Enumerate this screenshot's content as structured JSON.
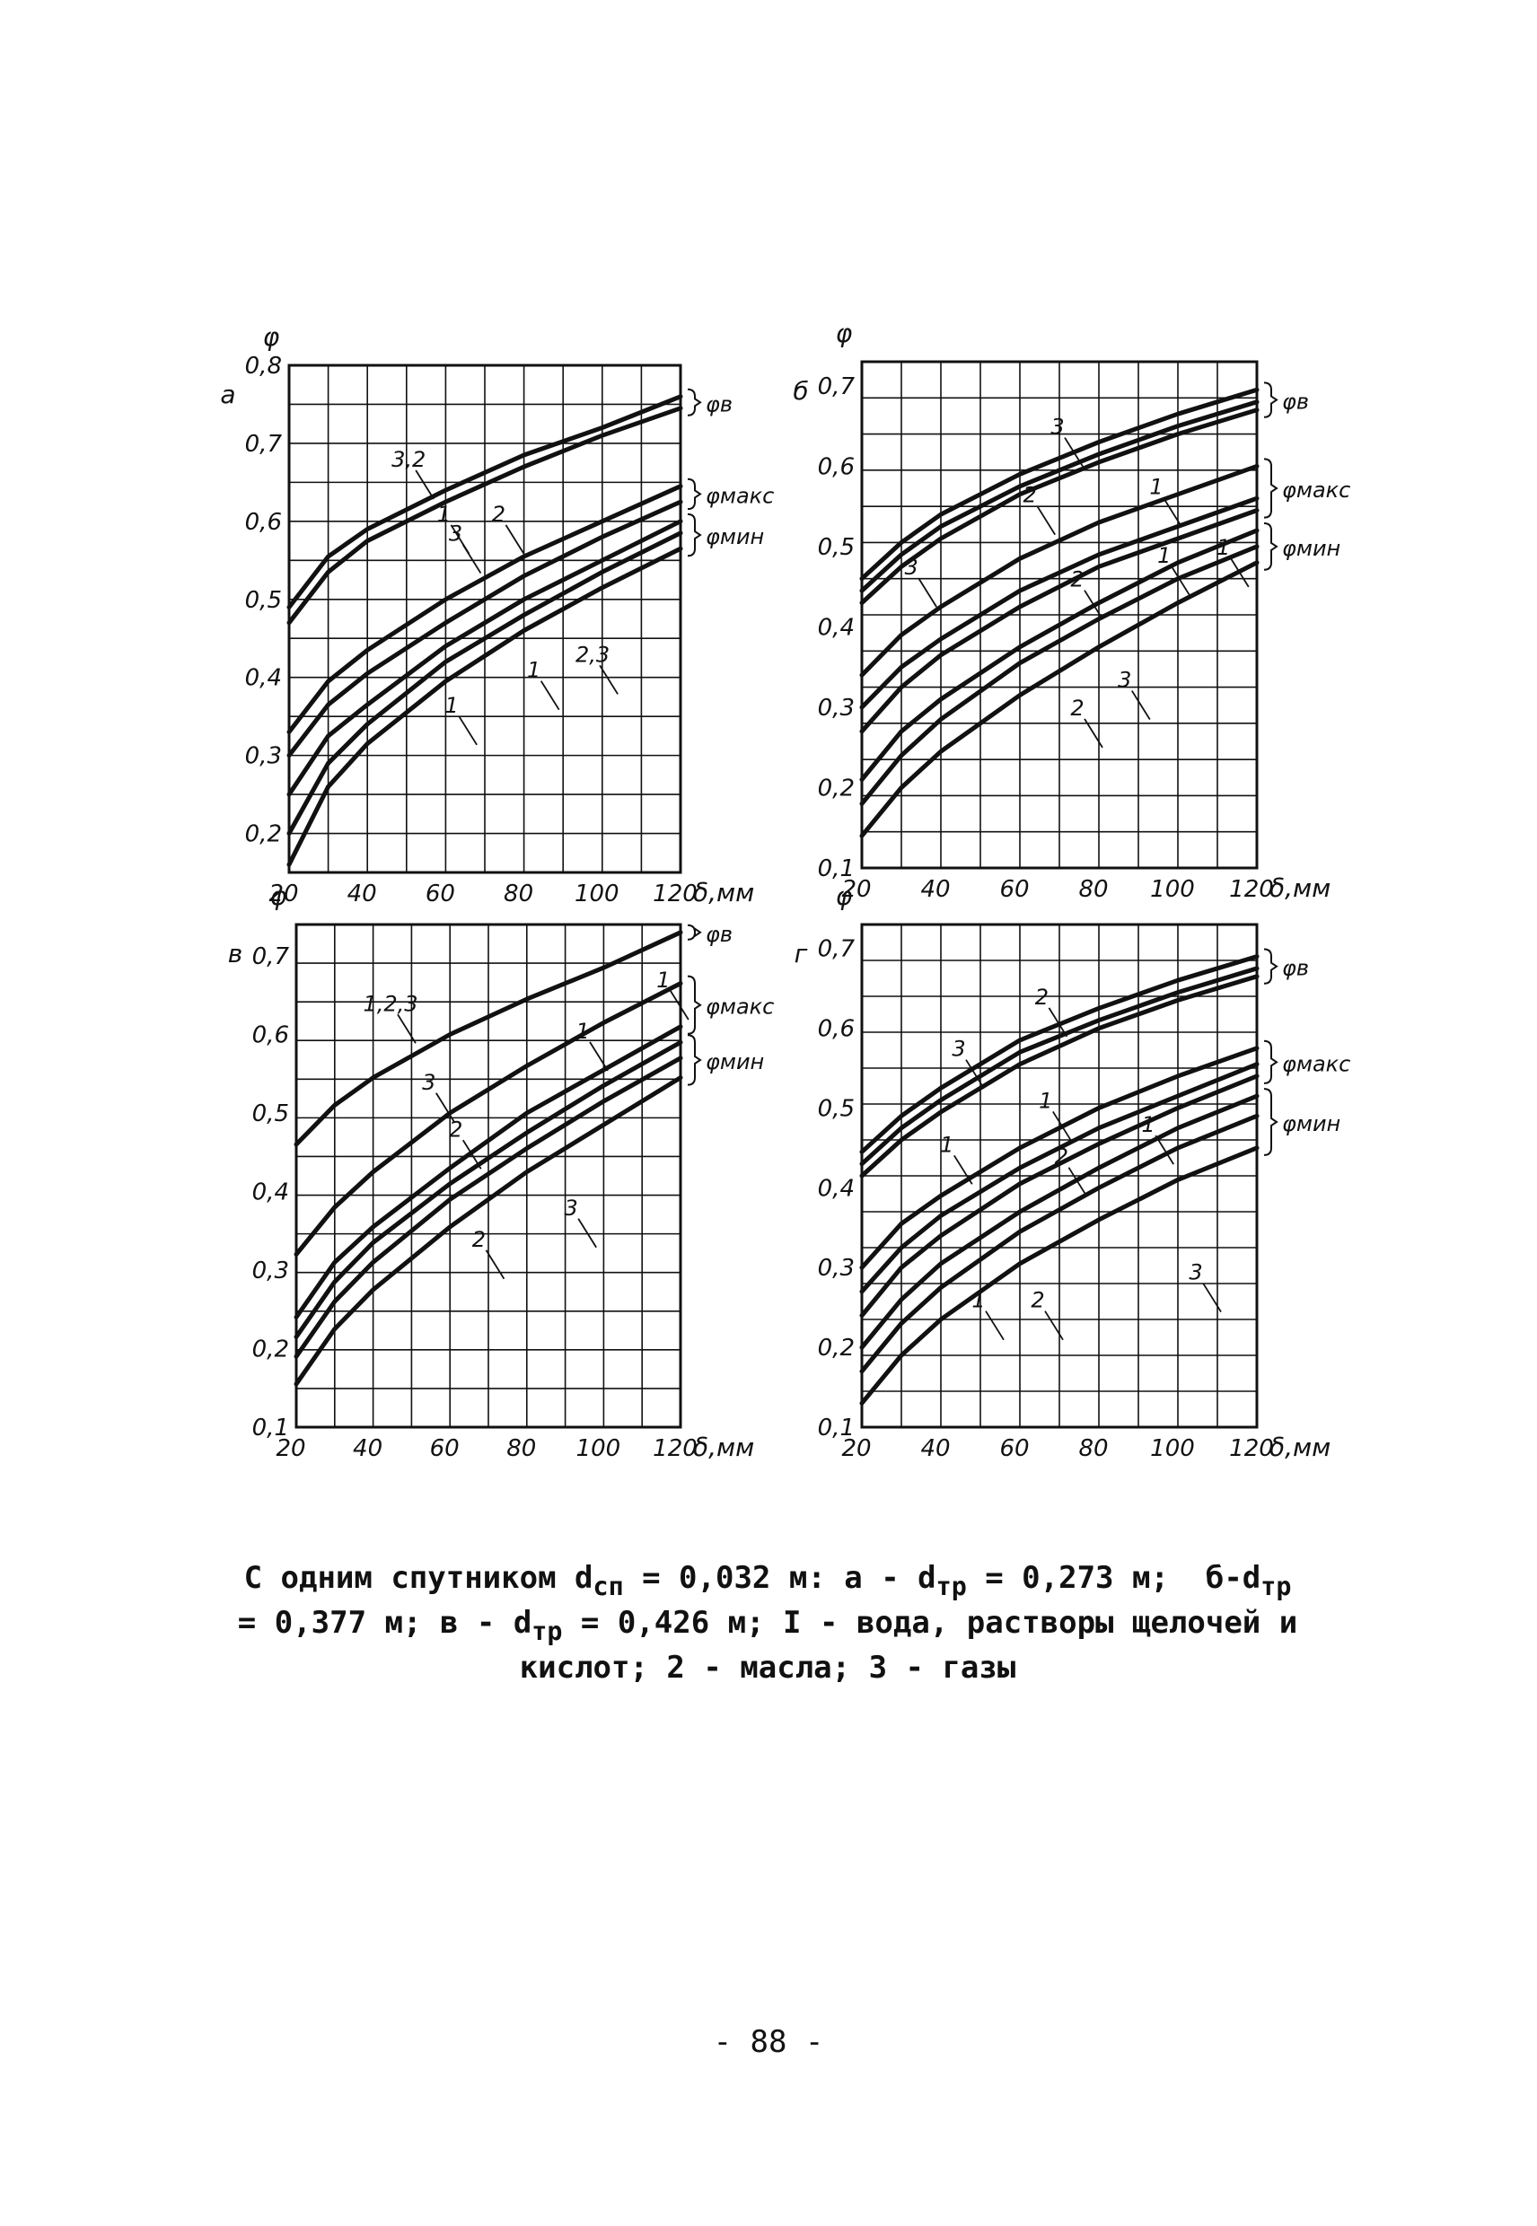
{
  "chart_data": [
    {
      "panel": "а",
      "type": "line",
      "ylabel": "φ",
      "xlabel": "δ,мм",
      "xlim": [
        20,
        120
      ],
      "ylim": [
        0.15,
        0.8
      ],
      "x_ticks": [
        "20",
        "40",
        "60",
        "80",
        "100",
        "120"
      ],
      "y_ticks": [
        "0,2",
        "0,3",
        "0,4",
        "0,5",
        "0,6",
        "0,7",
        "0,8"
      ],
      "grid": true,
      "groups": [
        {
          "label": "φв",
          "series": [
            {
              "x": [
                20,
                30,
                40,
                60,
                80,
                100,
                120
              ],
              "values": [
                0.49,
                0.555,
                0.59,
                0.64,
                0.685,
                0.72,
                0.76
              ]
            },
            {
              "x": [
                20,
                30,
                40,
                60,
                80,
                100,
                120
              ],
              "values": [
                0.47,
                0.535,
                0.575,
                0.625,
                0.67,
                0.71,
                0.745
              ]
            }
          ]
        },
        {
          "label": "φмакс",
          "series": [
            {
              "x": [
                20,
                30,
                40,
                60,
                80,
                100,
                120
              ],
              "values": [
                0.33,
                0.395,
                0.435,
                0.5,
                0.555,
                0.6,
                0.645
              ]
            },
            {
              "x": [
                20,
                30,
                40,
                60,
                80,
                100,
                120
              ],
              "values": [
                0.3,
                0.365,
                0.405,
                0.47,
                0.53,
                0.58,
                0.625
              ]
            }
          ]
        },
        {
          "label": "φмин",
          "series": [
            {
              "x": [
                20,
                30,
                40,
                60,
                80,
                100,
                120
              ],
              "values": [
                0.25,
                0.325,
                0.365,
                0.44,
                0.5,
                0.55,
                0.6
              ]
            },
            {
              "x": [
                20,
                30,
                40,
                60,
                80,
                100,
                120
              ],
              "values": [
                0.2,
                0.29,
                0.34,
                0.42,
                0.48,
                0.535,
                0.585
              ]
            },
            {
              "x": [
                20,
                30,
                40,
                60,
                80,
                100,
                120
              ],
              "values": [
                0.16,
                0.26,
                0.315,
                0.395,
                0.46,
                0.515,
                0.565
              ]
            }
          ]
        }
      ],
      "curve_labels": [
        {
          "text": "3,2",
          "x": 51,
          "y": 0.67
        },
        {
          "text": "1",
          "x": 60,
          "y": 0.6
        },
        {
          "text": "2",
          "x": 74,
          "y": 0.6
        },
        {
          "text": "3",
          "x": 63,
          "y": 0.575
        },
        {
          "text": "2,3",
          "x": 98,
          "y": 0.42
        },
        {
          "text": "1",
          "x": 83,
          "y": 0.4
        },
        {
          "text": "1",
          "x": 62,
          "y": 0.355
        }
      ]
    },
    {
      "panel": "б",
      "type": "line",
      "ylabel": "φ",
      "xlabel": "δ,мм",
      "xlim": [
        20,
        120
      ],
      "ylim": [
        0.1,
        0.73
      ],
      "x_ticks": [
        "20",
        "40",
        "60",
        "80",
        "100",
        "120"
      ],
      "y_ticks": [
        "0,1",
        "0,2",
        "0,3",
        "0,4",
        "0,5",
        "0,6",
        "0,7"
      ],
      "grid": true,
      "groups": [
        {
          "label": "φв",
          "series": [
            {
              "x": [
                20,
                30,
                40,
                60,
                80,
                100,
                120
              ],
              "values": [
                0.46,
                0.505,
                0.54,
                0.59,
                0.63,
                0.665,
                0.695
              ]
            },
            {
              "x": [
                20,
                30,
                40,
                60,
                80,
                100,
                120
              ],
              "values": [
                0.445,
                0.49,
                0.525,
                0.575,
                0.615,
                0.65,
                0.68
              ]
            },
            {
              "x": [
                20,
                30,
                40,
                60,
                80,
                100,
                120
              ],
              "values": [
                0.43,
                0.475,
                0.51,
                0.565,
                0.605,
                0.64,
                0.67
              ]
            }
          ]
        },
        {
          "label": "φмакс",
          "series": [
            {
              "x": [
                20,
                30,
                40,
                60,
                80,
                100,
                120
              ],
              "values": [
                0.34,
                0.39,
                0.425,
                0.485,
                0.53,
                0.565,
                0.6
              ]
            },
            {
              "x": [
                20,
                30,
                40,
                60,
                80,
                100,
                120
              ],
              "values": [
                0.3,
                0.35,
                0.385,
                0.445,
                0.49,
                0.525,
                0.56
              ]
            },
            {
              "x": [
                20,
                30,
                40,
                60,
                80,
                100,
                120
              ],
              "values": [
                0.27,
                0.325,
                0.365,
                0.425,
                0.475,
                0.51,
                0.545
              ]
            }
          ]
        },
        {
          "label": "φмин",
          "series": [
            {
              "x": [
                20,
                30,
                40,
                60,
                80,
                100,
                120
              ],
              "values": [
                0.21,
                0.27,
                0.31,
                0.375,
                0.43,
                0.48,
                0.52
              ]
            },
            {
              "x": [
                20,
                30,
                40,
                60,
                80,
                100,
                120
              ],
              "values": [
                0.18,
                0.24,
                0.285,
                0.355,
                0.41,
                0.46,
                0.5
              ]
            },
            {
              "x": [
                20,
                30,
                40,
                60,
                80,
                100,
                120
              ],
              "values": [
                0.14,
                0.2,
                0.245,
                0.315,
                0.375,
                0.43,
                0.48
              ]
            }
          ]
        }
      ],
      "curve_labels": [
        {
          "text": "3",
          "x": 70,
          "y": 0.64
        },
        {
          "text": "2",
          "x": 63,
          "y": 0.555
        },
        {
          "text": "1",
          "x": 95,
          "y": 0.565
        },
        {
          "text": "3",
          "x": 33,
          "y": 0.465
        },
        {
          "text": "2",
          "x": 75,
          "y": 0.45
        },
        {
          "text": "1",
          "x": 97,
          "y": 0.48
        },
        {
          "text": "1",
          "x": 112,
          "y": 0.49
        },
        {
          "text": "3",
          "x": 87,
          "y": 0.325
        },
        {
          "text": "2",
          "x": 75,
          "y": 0.29
        }
      ]
    },
    {
      "panel": "в",
      "type": "line",
      "ylabel": "φ",
      "xlabel": "δ,мм",
      "xlim": [
        20,
        120
      ],
      "ylim": [
        0.1,
        0.74
      ],
      "x_ticks": [
        "20",
        "40",
        "60",
        "80",
        "100",
        "120"
      ],
      "y_ticks": [
        "0,1",
        "0,2",
        "0,3",
        "0,4",
        "0,5",
        "0,6",
        "0,7"
      ],
      "grid": true,
      "groups": [
        {
          "label": "φв",
          "series": [
            {
              "x": [
                20,
                30,
                40,
                60,
                80,
                100,
                120
              ],
              "values": [
                0.46,
                0.51,
                0.545,
                0.6,
                0.645,
                0.685,
                0.73
              ]
            }
          ]
        },
        {
          "label": "φмакс",
          "series": [
            {
              "x": [
                20,
                30,
                40,
                60,
                80,
                100,
                120
              ],
              "values": [
                0.32,
                0.38,
                0.425,
                0.5,
                0.56,
                0.615,
                0.665
              ]
            },
            {
              "x": [
                20,
                30,
                40,
                60,
                80,
                100,
                120
              ],
              "values": [
                0.24,
                0.31,
                0.355,
                0.43,
                0.5,
                0.555,
                0.61
              ]
            }
          ]
        },
        {
          "label": "φмин",
          "series": [
            {
              "x": [
                20,
                30,
                40,
                60,
                80,
                100,
                120
              ],
              "values": [
                0.215,
                0.285,
                0.335,
                0.41,
                0.475,
                0.535,
                0.59
              ]
            },
            {
              "x": [
                20,
                30,
                40,
                60,
                80,
                100,
                120
              ],
              "values": [
                0.19,
                0.26,
                0.31,
                0.39,
                0.455,
                0.515,
                0.57
              ]
            },
            {
              "x": [
                20,
                30,
                40,
                60,
                80,
                100,
                120
              ],
              "values": [
                0.155,
                0.225,
                0.275,
                0.355,
                0.425,
                0.485,
                0.545
              ]
            }
          ]
        }
      ],
      "curve_labels": [
        {
          "text": "1,2,3",
          "x": 45,
          "y": 0.63
        },
        {
          "text": "3",
          "x": 55,
          "y": 0.53
        },
        {
          "text": "2",
          "x": 62,
          "y": 0.47
        },
        {
          "text": "1",
          "x": 95,
          "y": 0.595
        },
        {
          "text": "1",
          "x": 116,
          "y": 0.66
        },
        {
          "text": "2",
          "x": 68,
          "y": 0.33
        },
        {
          "text": "3",
          "x": 92,
          "y": 0.37
        }
      ]
    },
    {
      "panel": "г",
      "type": "line",
      "ylabel": "φ",
      "xlabel": "δ,мм",
      "xlim": [
        20,
        120
      ],
      "ylim": [
        0.1,
        0.73
      ],
      "x_ticks": [
        "20",
        "40",
        "60",
        "80",
        "100",
        "120"
      ],
      "y_ticks": [
        "0,1",
        "0,2",
        "0,3",
        "0,4",
        "0,5",
        "0,6",
        "0,7"
      ],
      "grid": true,
      "groups": [
        {
          "label": "φв",
          "series": [
            {
              "x": [
                20,
                30,
                40,
                60,
                80,
                100,
                120
              ],
              "values": [
                0.445,
                0.49,
                0.525,
                0.585,
                0.625,
                0.66,
                0.69
              ]
            },
            {
              "x": [
                20,
                30,
                40,
                60,
                80,
                100,
                120
              ],
              "values": [
                0.43,
                0.475,
                0.51,
                0.57,
                0.61,
                0.645,
                0.675
              ]
            },
            {
              "x": [
                20,
                30,
                40,
                60,
                80,
                100,
                120
              ],
              "values": [
                0.415,
                0.46,
                0.495,
                0.555,
                0.6,
                0.635,
                0.665
              ]
            }
          ]
        },
        {
          "label": "φмакс",
          "series": [
            {
              "x": [
                20,
                30,
                40,
                60,
                80,
                100,
                120
              ],
              "values": [
                0.3,
                0.355,
                0.39,
                0.45,
                0.5,
                0.54,
                0.575
              ]
            },
            {
              "x": [
                20,
                30,
                40,
                60,
                80,
                100,
                120
              ],
              "values": [
                0.27,
                0.325,
                0.365,
                0.425,
                0.475,
                0.515,
                0.555
              ]
            },
            {
              "x": [
                20,
                30,
                40,
                60,
                80,
                100,
                120
              ],
              "values": [
                0.24,
                0.3,
                0.34,
                0.405,
                0.455,
                0.5,
                0.54
              ]
            }
          ]
        },
        {
          "label": "φмин",
          "series": [
            {
              "x": [
                20,
                30,
                40,
                60,
                80,
                100,
                120
              ],
              "values": [
                0.2,
                0.26,
                0.305,
                0.37,
                0.425,
                0.475,
                0.515
              ]
            },
            {
              "x": [
                20,
                30,
                40,
                60,
                80,
                100,
                120
              ],
              "values": [
                0.17,
                0.23,
                0.275,
                0.345,
                0.4,
                0.45,
                0.49
              ]
            },
            {
              "x": [
                20,
                30,
                40,
                60,
                80,
                100,
                120
              ],
              "values": [
                0.13,
                0.19,
                0.235,
                0.305,
                0.36,
                0.41,
                0.45
              ]
            }
          ]
        }
      ],
      "curve_labels": [
        {
          "text": "3",
          "x": 45,
          "y": 0.565
        },
        {
          "text": "2",
          "x": 66,
          "y": 0.63
        },
        {
          "text": "1",
          "x": 67,
          "y": 0.5
        },
        {
          "text": "1",
          "x": 42,
          "y": 0.445
        },
        {
          "text": "2",
          "x": 71,
          "y": 0.43
        },
        {
          "text": "1",
          "x": 93,
          "y": 0.47
        },
        {
          "text": "1",
          "x": 50,
          "y": 0.25
        },
        {
          "text": "2",
          "x": 65,
          "y": 0.25
        },
        {
          "text": "3",
          "x": 105,
          "y": 0.285
        }
      ]
    }
  ],
  "caption": {
    "line1": "С одним спутником d",
    "line1_sub": "сп",
    "line1_rest": " = 0,032 м: а - d",
    "line1_sub2": "тр",
    "line1_rest2": " = 0,273 м;  б-d",
    "line1_sub3": "тр",
    "line2": "= 0,377 м; в - d",
    "line2_sub": "тр",
    "line2_rest": " = 0,426 м; I - вода, растворы щелочей и",
    "line3": "кислот; 2 - масла; 3 - газы"
  },
  "page_number": "- 88 -"
}
